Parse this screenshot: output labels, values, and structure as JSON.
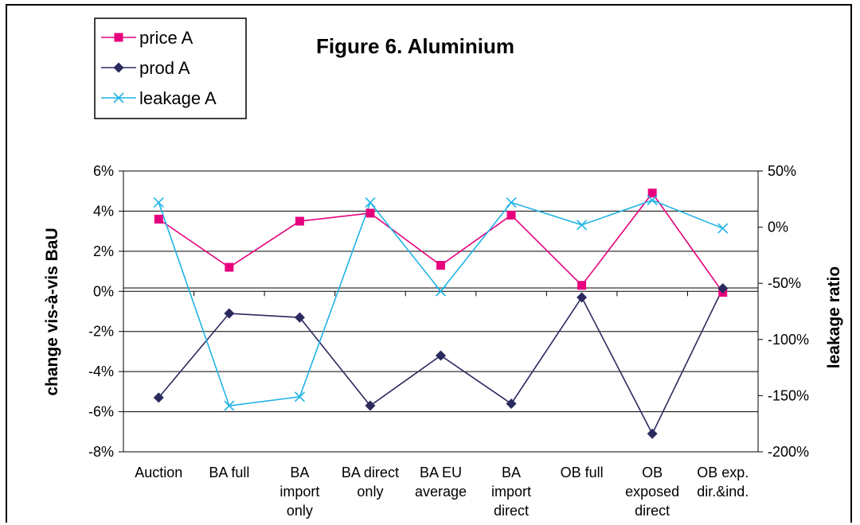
{
  "chart_data": {
    "type": "line",
    "title": "Figure 6. Aluminium",
    "categories": [
      [
        "Auction"
      ],
      [
        "BA full"
      ],
      [
        "BA",
        "import",
        "only"
      ],
      [
        "BA direct",
        "only"
      ],
      [
        "BA EU",
        "average"
      ],
      [
        "BA",
        "import",
        "direct"
      ],
      [
        "OB full"
      ],
      [
        "OB",
        "exposed",
        "direct"
      ],
      [
        "OB exp.",
        "dir.&ind."
      ]
    ],
    "ylabel": "change vis-à-vis BaU",
    "y2label": "leakage ratio",
    "ylim": [
      -8,
      6
    ],
    "y_ticks": [
      "6%",
      "4%",
      "2%",
      "0%",
      "-2%",
      "-4%",
      "-6%",
      "-8%"
    ],
    "y_tick_values": [
      6,
      4,
      2,
      0,
      -2,
      -4,
      -6,
      -8
    ],
    "y2lim": [
      -200,
      50
    ],
    "y2_ticks": [
      "50%",
      "0%",
      "-50%",
      "-100%",
      "-150%",
      "-200%"
    ],
    "y2_tick_values": [
      50,
      0,
      -50,
      -100,
      -150,
      -200
    ],
    "grid": true,
    "legend_position": "top-left",
    "series": [
      {
        "name": "price A",
        "axis": "left",
        "color": "#e6007e",
        "marker": "square",
        "values": [
          3.6,
          1.2,
          3.5,
          3.9,
          1.3,
          3.8,
          0.3,
          4.9,
          -0.05
        ]
      },
      {
        "name": "prod A",
        "axis": "left",
        "color": "#2b2a5e",
        "marker": "diamond",
        "values": [
          -5.3,
          -1.1,
          -1.3,
          -5.7,
          -3.2,
          -5.6,
          -0.3,
          -7.1,
          0.15
        ]
      },
      {
        "name": "leakage A",
        "axis": "right",
        "color": "#1fb3e6",
        "marker": "x",
        "values": [
          22,
          -159,
          -151,
          22,
          -57,
          22,
          2,
          24,
          -1
        ]
      }
    ]
  }
}
